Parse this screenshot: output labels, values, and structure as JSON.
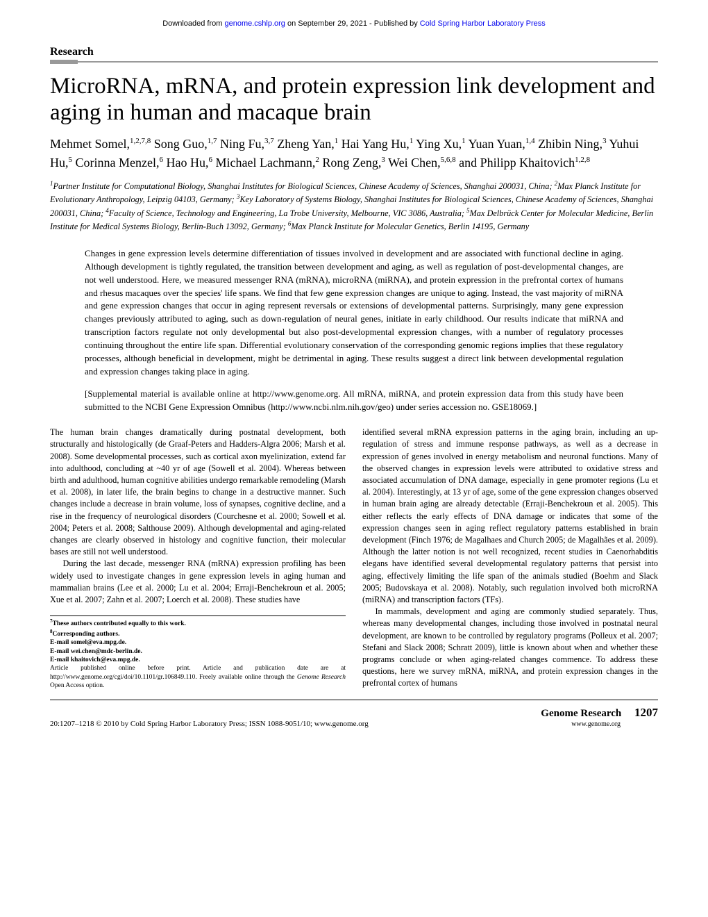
{
  "banner": {
    "prefix": "Downloaded from ",
    "link1": "genome.cshlp.org",
    "middle": " on September 29, 2021 - Published by ",
    "link2": "Cold Spring Harbor Laboratory Press"
  },
  "section_label": "Research",
  "title": "MicroRNA, mRNA, and protein expression link development and aging in human and macaque brain",
  "authors_html": "Mehmet Somel,<sup>1,2,7,8</sup> Song Guo,<sup>1,7</sup> Ning Fu,<sup>3,7</sup> Zheng Yan,<sup>1</sup> Hai Yang Hu,<sup>1</sup> Ying Xu,<sup>1</sup> Yuan Yuan,<sup>1,4</sup> Zhibin Ning,<sup>3</sup> Yuhui Hu,<sup>5</sup> Corinna Menzel,<sup>6</sup> Hao Hu,<sup>6</sup> Michael Lachmann,<sup>2</sup> Rong Zeng,<sup>3</sup> Wei Chen,<sup>5,6,8</sup> and Philipp Khaitovich<sup>1,2,8</sup>",
  "affiliations_html": "<sup>1</sup>Partner Institute for Computational Biology, Shanghai Institutes for Biological Sciences, Chinese Academy of Sciences, Shanghai 200031, China; <sup>2</sup>Max Planck Institute for Evolutionary Anthropology, Leipzig 04103, Germany; <sup>3</sup>Key Laboratory of Systems Biology, Shanghai Institutes for Biological Sciences, Chinese Academy of Sciences, Shanghai 200031, China; <sup>4</sup>Faculty of Science, Technology and Engineering, La Trobe University, Melbourne, VIC 3086, Australia; <sup>5</sup>Max Delbrück Center for Molecular Medicine, Berlin Institute for Medical Systems Biology, Berlin-Buch 13092, Germany; <sup>6</sup>Max Planck Institute for Molecular Genetics, Berlin 14195, Germany",
  "abstract": "Changes in gene expression levels determine differentiation of tissues involved in development and are associated with functional decline in aging. Although development is tightly regulated, the transition between development and aging, as well as regulation of post-developmental changes, are not well understood. Here, we measured messenger RNA (mRNA), microRNA (miRNA), and protein expression in the prefrontal cortex of humans and rhesus macaques over the species' life spans. We find that few gene expression changes are unique to aging. Instead, the vast majority of miRNA and gene expression changes that occur in aging represent reversals or extensions of developmental patterns. Surprisingly, many gene expression changes previously attributed to aging, such as down-regulation of neural genes, initiate in early childhood. Our results indicate that miRNA and transcription factors regulate not only developmental but also post-developmental expression changes, with a number of regulatory processes continuing throughout the entire life span. Differential evolutionary conservation of the corresponding genomic regions implies that these regulatory processes, although beneficial in development, might be detrimental in aging. These results suggest a direct link between developmental regulation and expression changes taking place in aging.",
  "supplemental": "[Supplemental material is available online at http://www.genome.org. All mRNA, miRNA, and protein expression data from this study have been submitted to the NCBI Gene Expression Omnibus (http://www.ncbi.nlm.nih.gov/geo) under series accession no. GSE18069.]",
  "col1_p1": "The human brain changes dramatically during postnatal development, both structurally and histologically (de Graaf-Peters and Hadders-Algra 2006; Marsh et al. 2008). Some developmental processes, such as cortical axon myelinization, extend far into adulthood, concluding at ~40 yr of age (Sowell et al. 2004). Whereas between birth and adulthood, human cognitive abilities undergo remarkable remodeling (Marsh et al. 2008), in later life, the brain begins to change in a destructive manner. Such changes include a decrease in brain volume, loss of synapses, cognitive decline, and a rise in the frequency of neurological disorders (Courchesne et al. 2000; Sowell et al. 2004; Peters et al. 2008; Salthouse 2009). Although developmental and aging-related changes are clearly observed in histology and cognitive function, their molecular bases are still not well understood.",
  "col1_p2": "During the last decade, messenger RNA (mRNA) expression profiling has been widely used to investigate changes in gene expression levels in aging human and mammalian brains (Lee et al. 2000; Lu et al. 2004; Erraji-Benchekroun et al. 2005; Xue et al. 2007; Zahn et al. 2007; Loerch et al. 2008). These studies have",
  "col2_p1": "identified several mRNA expression patterns in the aging brain, including an up-regulation of stress and immune response pathways, as well as a decrease in expression of genes involved in energy metabolism and neuronal functions. Many of the observed changes in expression levels were attributed to oxidative stress and associated accumulation of DNA damage, especially in gene promoter regions (Lu et al. 2004). Interestingly, at 13 yr of age, some of the gene expression changes observed in human brain aging are already detectable (Erraji-Benchekroun et al. 2005). This either reflects the early effects of DNA damage or indicates that some of the expression changes seen in aging reflect regulatory patterns established in brain development (Finch 1976; de Magalhaes and Church 2005; de Magalhães et al. 2009). Although the latter notion is not well recognized, recent studies in Caenorhabditis elegans have identified several developmental regulatory patterns that persist into aging, effectively limiting the life span of the animals studied (Boehm and Slack 2005; Budovskaya et al. 2008). Notably, such regulation involved both microRNA (miRNA) and transcription factors (TFs).",
  "col2_p2": "In mammals, development and aging are commonly studied separately. Thus, whereas many developmental changes, including those involved in postnatal neural development, are known to be controlled by regulatory programs (Polleux et al. 2007; Stefani and Slack 2008; Schratt 2009), little is known about when and whether these programs conclude or when aging-related changes commence. To address these questions, here we survey mRNA, miRNA, and protein expression changes in the prefrontal cortex of humans",
  "footnotes": {
    "f7": "These authors contributed equally to this work.",
    "f8": "Corresponding authors.",
    "email1": "E-mail somel@eva.mpg.de.",
    "email2": "E-mail wei.chen@mdc-berlin.de.",
    "email3": "E-mail khaitovich@eva.mpg.de.",
    "pubnote": "Article published online before print. Article and publication date are at http://www.genome.org/cgi/doi/10.1101/gr.106849.110. Freely available online through the Genome Research Open Access option."
  },
  "footer": {
    "left": "20:1207–1218 © 2010 by Cold Spring Harbor Laboratory Press; ISSN 1088-9051/10; www.genome.org",
    "journal": "Genome Research",
    "page": "1207",
    "url": "www.genome.org"
  }
}
